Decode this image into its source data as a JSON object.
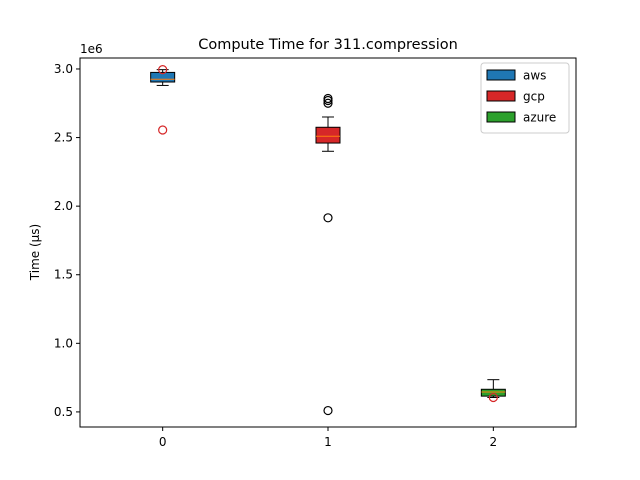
{
  "chart_data": {
    "type": "box",
    "title": "Compute Time for 311.compression",
    "xlabel": "",
    "ylabel": "Time (µs)",
    "offset_label": "1e6",
    "xlim": [
      -0.5,
      2.5
    ],
    "ylim": [
      0.39,
      3.08
    ],
    "xticks": [
      0,
      1,
      2
    ],
    "xtick_labels": [
      "0",
      "1",
      "2"
    ],
    "yticks": [
      0.5,
      1.0,
      1.5,
      2.0,
      2.5,
      3.0
    ],
    "ytick_labels": [
      "0.5",
      "1.0",
      "1.5",
      "2.0",
      "2.5",
      "3.0"
    ],
    "grid": false,
    "legend_position": "top-right",
    "series": [
      {
        "name": "aws",
        "color": "#1f77b4",
        "outlier_color": "#d62728",
        "x": 0,
        "whisker_low": 2.88,
        "q1": 2.905,
        "median": 2.925,
        "q3": 2.975,
        "whisker_high": 2.995,
        "outliers": [
          2.555,
          2.995
        ]
      },
      {
        "name": "gcp",
        "color": "#d62728",
        "outlier_color": "#000000",
        "x": 1,
        "whisker_low": 2.4,
        "q1": 2.46,
        "median": 2.51,
        "q3": 2.575,
        "whisker_high": 2.65,
        "outliers": [
          0.51,
          1.915,
          2.75,
          2.77,
          2.785
        ]
      },
      {
        "name": "azure",
        "color": "#2ca02c",
        "outlier_color": "#d62728",
        "x": 2,
        "whisker_low": 0.605,
        "q1": 0.615,
        "median": 0.645,
        "q3": 0.665,
        "whisker_high": 0.735,
        "outliers": [
          0.605
        ]
      }
    ]
  }
}
